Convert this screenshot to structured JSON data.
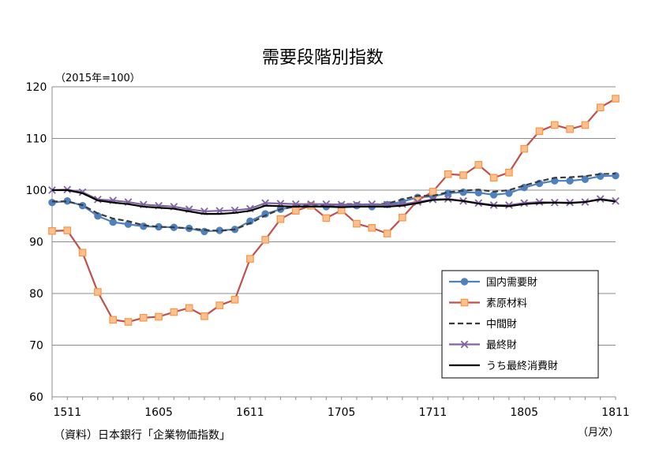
{
  "chart_data": {
    "type": "line",
    "title": "需要段階別指数",
    "unit_note": "（2015年=100）",
    "xlabel": "（月次）",
    "source": "（資料）日本銀行「企業物価指数」",
    "ylim": [
      60,
      120
    ],
    "yticks": [
      "120",
      "110",
      "100",
      "90",
      "80",
      "70",
      "60"
    ],
    "grid": true,
    "legend_position": "lower-right",
    "x": [
      "1510",
      "1511",
      "1512",
      "1601",
      "1602",
      "1603",
      "1604",
      "1605",
      "1606",
      "1607",
      "1608",
      "1609",
      "1610",
      "1611",
      "1612",
      "1701",
      "1702",
      "1703",
      "1704",
      "1705",
      "1706",
      "1707",
      "1708",
      "1709",
      "1710",
      "1711",
      "1712",
      "1801",
      "1802",
      "1803",
      "1804",
      "1805",
      "1806",
      "1807",
      "1808",
      "1809",
      "1810",
      "1811"
    ],
    "xtick_labels": [
      "1511",
      "1605",
      "1611",
      "1705",
      "1711",
      "1805",
      "1811"
    ],
    "series": [
      {
        "name": "国内需要財",
        "color": "#4f81bd",
        "marker": "circle",
        "dash": false,
        "values": [
          97.6,
          97.9,
          97.0,
          95.0,
          93.8,
          93.4,
          93.0,
          92.9,
          92.8,
          92.6,
          92.0,
          92.2,
          92.4,
          94.0,
          95.4,
          96.3,
          96.8,
          97.0,
          96.8,
          96.9,
          97.0,
          96.8,
          97.2,
          97.8,
          98.6,
          98.8,
          99.4,
          99.6,
          99.5,
          99.1,
          99.4,
          100.5,
          101.3,
          101.8,
          101.8,
          102.1,
          102.7,
          102.8
        ]
      },
      {
        "name": "素原材料",
        "color": "#c0504d",
        "marker_fill": "#fac090",
        "marker_stroke": "#f79646",
        "marker": "square",
        "dash": false,
        "values": [
          92.1,
          92.2,
          87.9,
          80.3,
          74.9,
          74.5,
          75.3,
          75.5,
          76.4,
          77.2,
          75.6,
          77.7,
          78.8,
          86.7,
          90.4,
          94.4,
          96.0,
          97.0,
          94.6,
          96.1,
          93.5,
          92.7,
          91.6,
          94.7,
          98.0,
          99.7,
          103.1,
          102.9,
          104.9,
          102.4,
          103.4,
          108.0,
          111.4,
          112.6,
          111.8,
          112.6,
          116.0,
          117.7
        ]
      },
      {
        "name": "中間財",
        "color": "#3a3a3a",
        "marker": "none",
        "dash": true,
        "values": [
          97.8,
          97.8,
          97.1,
          95.5,
          94.5,
          94.0,
          93.2,
          92.9,
          92.8,
          92.6,
          92.3,
          92.1,
          92.4,
          93.6,
          95.1,
          96.3,
          96.9,
          97.2,
          97.1,
          97.3,
          97.3,
          97.2,
          97.4,
          98.2,
          98.9,
          98.9,
          99.6,
          99.9,
          100.1,
          99.7,
          100.0,
          100.9,
          101.7,
          102.4,
          102.5,
          102.7,
          103.1,
          103.2
        ]
      },
      {
        "name": "最終財",
        "color": "#8064a2",
        "marker": "x",
        "dash": false,
        "values": [
          100.0,
          100.1,
          99.6,
          98.2,
          98.0,
          97.7,
          97.2,
          97.0,
          96.8,
          96.3,
          95.9,
          96.0,
          96.1,
          96.4,
          97.5,
          97.4,
          97.3,
          97.3,
          97.3,
          97.2,
          97.2,
          97.3,
          97.2,
          97.3,
          97.7,
          98.2,
          98.3,
          97.9,
          97.5,
          97.1,
          97.1,
          97.5,
          97.7,
          97.6,
          97.6,
          97.7,
          98.3,
          97.9
        ]
      },
      {
        "name": "うち最終消費財",
        "color": "#000000",
        "marker": "none",
        "dash": false,
        "values": [
          100.0,
          100.0,
          99.4,
          98.0,
          97.6,
          97.3,
          96.8,
          96.6,
          96.4,
          95.9,
          95.4,
          95.4,
          95.6,
          96.0,
          97.0,
          96.9,
          96.8,
          96.8,
          96.8,
          96.7,
          96.8,
          96.8,
          96.8,
          97.0,
          97.5,
          98.1,
          98.2,
          97.9,
          97.4,
          97.0,
          96.9,
          97.3,
          97.5,
          97.6,
          97.5,
          97.7,
          98.2,
          97.8
        ]
      }
    ]
  }
}
